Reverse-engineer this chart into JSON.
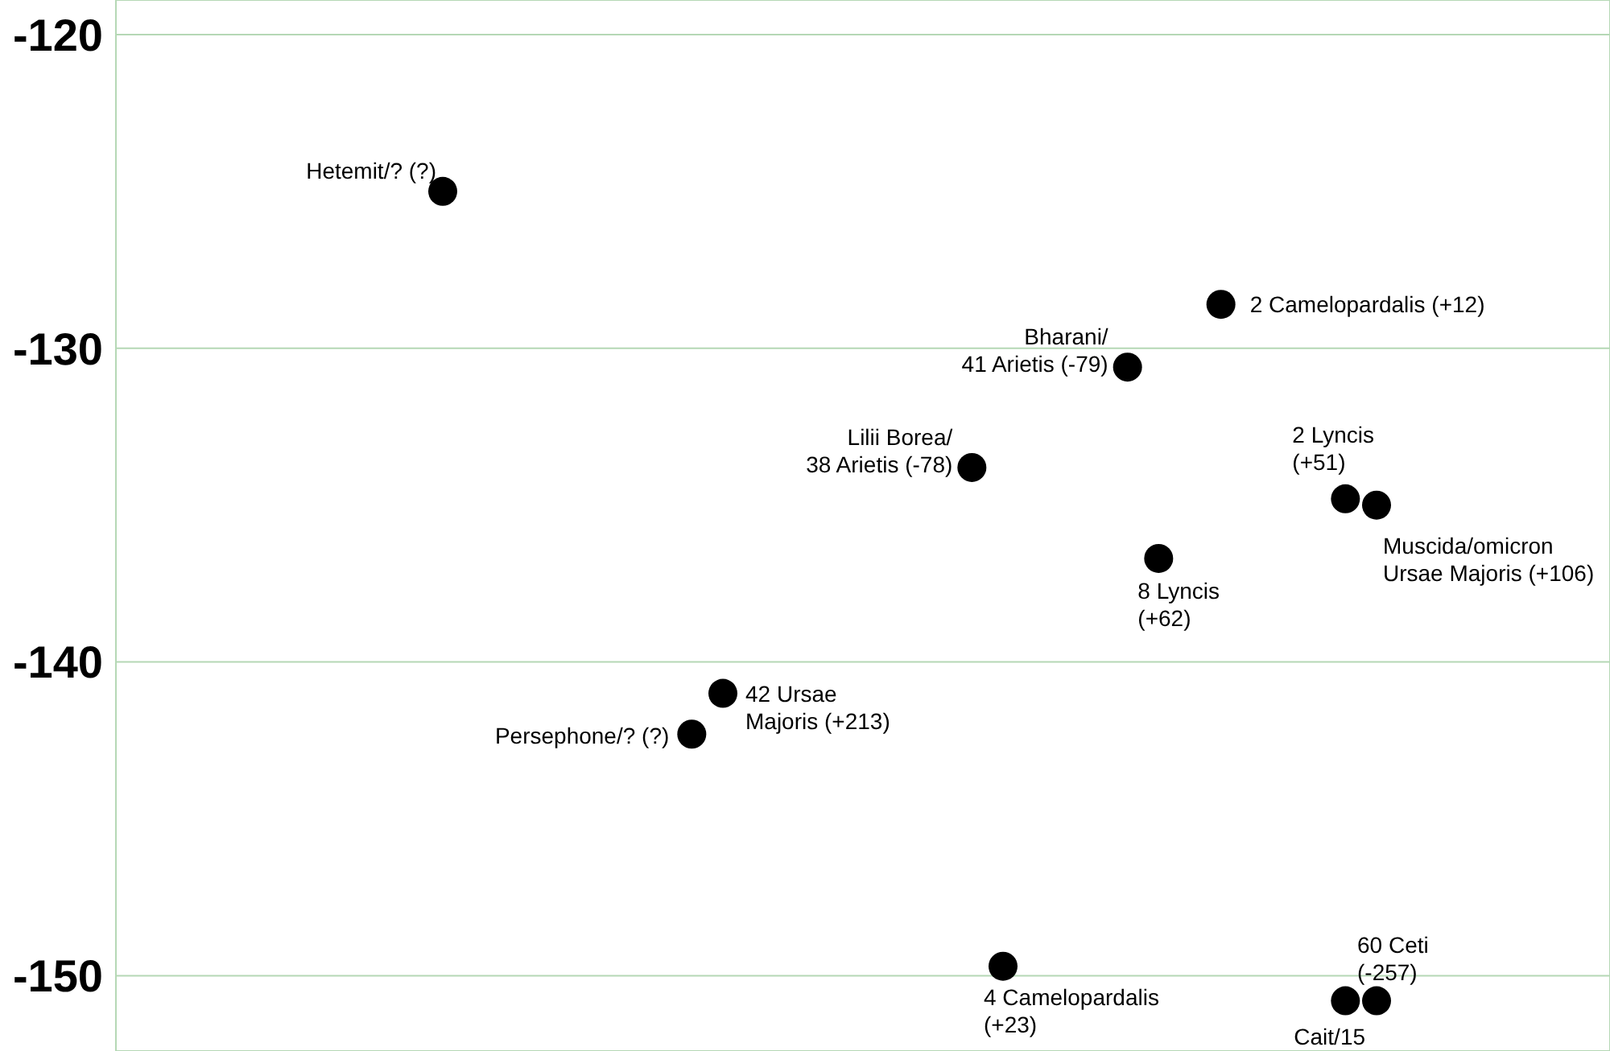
{
  "chart_data": {
    "type": "scatter",
    "categories": [
      null,
      null,
      null,
      null,
      null,
      null,
      null,
      null,
      null,
      null,
      null,
      null,
      null,
      null,
      null,
      null,
      null,
      null,
      null,
      null,
      null,
      null,
      null,
      null,
      null,
      null,
      null,
      null,
      null,
      null,
      null,
      null,
      null,
      null,
      null,
      null,
      null,
      null,
      null,
      null,
      null,
      null,
      null,
      null,
      null,
      null,
      null,
      null
    ],
    "series": [
      {
        "name": "Hetemit/? (?)",
        "color": "#000000",
        "values": [
          null,
          null,
          null,
          null,
          null,
          null,
          null,
          null,
          null,
          null,
          -125,
          null,
          null,
          null,
          null,
          null,
          null,
          null,
          null,
          null,
          null,
          null,
          null,
          null,
          null,
          null,
          null,
          null,
          null,
          null,
          null,
          null,
          null,
          null,
          null,
          null,
          null,
          null,
          null,
          null,
          null,
          null,
          null,
          null,
          null,
          null,
          null,
          null
        ]
      },
      {
        "name": "2 Camelopardalis (+12)",
        "color": "#000000",
        "values": [
          null,
          null,
          null,
          null,
          null,
          null,
          null,
          null,
          null,
          null,
          null,
          null,
          null,
          null,
          null,
          null,
          null,
          null,
          null,
          null,
          null,
          null,
          null,
          null,
          null,
          null,
          null,
          null,
          null,
          null,
          null,
          null,
          null,
          null,
          null,
          -128.6,
          null,
          null,
          null,
          null,
          null,
          null,
          null,
          null,
          null,
          null,
          null,
          null
        ]
      },
      {
        "name": "Bharani/41 Arietis (-79)",
        "color": "#000000",
        "values": [
          null,
          null,
          null,
          null,
          null,
          null,
          null,
          null,
          null,
          null,
          null,
          null,
          null,
          null,
          null,
          null,
          null,
          null,
          null,
          null,
          null,
          null,
          null,
          null,
          null,
          null,
          null,
          null,
          null,
          null,
          null,
          null,
          -130.6,
          null,
          null,
          null,
          null,
          null,
          null,
          null,
          null,
          null,
          null,
          null,
          null,
          null,
          null,
          null
        ]
      },
      {
        "name": "Lilii Borea/38 Arietis (-78)",
        "color": "#000000",
        "values": [
          null,
          null,
          null,
          null,
          null,
          null,
          null,
          null,
          null,
          null,
          null,
          null,
          null,
          null,
          null,
          null,
          null,
          null,
          null,
          null,
          null,
          null,
          null,
          null,
          null,
          null,
          null,
          -133.8,
          null,
          null,
          null,
          null,
          null,
          null,
          null,
          null,
          null,
          null,
          null,
          null,
          null,
          null,
          null,
          null,
          null,
          null,
          null,
          null
        ]
      },
      {
        "name": "2 Lyncis (+51)",
        "color": "#000000",
        "values": [
          null,
          null,
          null,
          null,
          null,
          null,
          null,
          null,
          null,
          null,
          null,
          null,
          null,
          null,
          null,
          null,
          null,
          null,
          null,
          null,
          null,
          null,
          null,
          null,
          null,
          null,
          null,
          null,
          null,
          null,
          null,
          null,
          null,
          null,
          null,
          null,
          null,
          null,
          null,
          -134.8,
          null,
          null,
          null,
          null,
          null,
          null,
          null,
          null
        ]
      },
      {
        "name": "Muscida/omicron Ursae Majoris (+106)",
        "color": "#000000",
        "values": [
          null,
          null,
          null,
          null,
          null,
          null,
          null,
          null,
          null,
          null,
          null,
          null,
          null,
          null,
          null,
          null,
          null,
          null,
          null,
          null,
          null,
          null,
          null,
          null,
          null,
          null,
          null,
          null,
          null,
          null,
          null,
          null,
          null,
          null,
          null,
          null,
          null,
          null,
          null,
          null,
          -135,
          null,
          null,
          null,
          null,
          null,
          null,
          null
        ]
      },
      {
        "name": "8 Lyncis (+62)",
        "color": "#000000",
        "values": [
          null,
          null,
          null,
          null,
          null,
          null,
          null,
          null,
          null,
          null,
          null,
          null,
          null,
          null,
          null,
          null,
          null,
          null,
          null,
          null,
          null,
          null,
          null,
          null,
          null,
          null,
          null,
          null,
          null,
          null,
          null,
          null,
          null,
          -136.7,
          null,
          null,
          null,
          null,
          null,
          null,
          null,
          null,
          null,
          null,
          null,
          null,
          null,
          null
        ]
      },
      {
        "name": "42 Ursae Majoris (+213)",
        "color": "#000000",
        "values": [
          null,
          null,
          null,
          null,
          null,
          null,
          null,
          null,
          null,
          null,
          null,
          null,
          null,
          null,
          null,
          null,
          null,
          null,
          null,
          -141,
          null,
          null,
          null,
          null,
          null,
          null,
          null,
          null,
          null,
          null,
          null,
          null,
          null,
          null,
          null,
          null,
          null,
          null,
          null,
          null,
          null,
          null,
          null,
          null,
          null,
          null,
          null,
          null
        ]
      },
      {
        "name": "Persephone/? (?)",
        "color": "#000000",
        "values": [
          null,
          null,
          null,
          null,
          null,
          null,
          null,
          null,
          null,
          null,
          null,
          null,
          null,
          null,
          null,
          null,
          null,
          null,
          -142.3,
          null,
          null,
          null,
          null,
          null,
          null,
          null,
          null,
          null,
          null,
          null,
          null,
          null,
          null,
          null,
          null,
          null,
          null,
          null,
          null,
          null,
          null,
          null,
          null,
          null,
          null,
          null,
          null,
          null
        ]
      },
      {
        "name": "4 Camelopardalis (+23)",
        "color": "#000000",
        "values": [
          null,
          null,
          null,
          null,
          null,
          null,
          null,
          null,
          null,
          null,
          null,
          null,
          null,
          null,
          null,
          null,
          null,
          null,
          null,
          null,
          null,
          null,
          null,
          null,
          null,
          null,
          null,
          null,
          -149.7,
          null,
          null,
          null,
          null,
          null,
          null,
          null,
          null,
          null,
          null,
          null,
          null,
          null,
          null,
          null,
          null,
          null,
          null,
          null
        ]
      },
      {
        "name": "Cait/15",
        "color": "#000000",
        "values": [
          null,
          null,
          null,
          null,
          null,
          null,
          null,
          null,
          null,
          null,
          null,
          null,
          null,
          null,
          null,
          null,
          null,
          null,
          null,
          null,
          null,
          null,
          null,
          null,
          null,
          null,
          null,
          null,
          null,
          null,
          null,
          null,
          null,
          null,
          null,
          null,
          null,
          null,
          null,
          -150.8,
          null,
          null,
          null,
          null,
          null,
          null,
          null,
          null
        ]
      },
      {
        "name": "60 Ceti (-257)",
        "color": "#000000",
        "values": [
          null,
          null,
          null,
          null,
          null,
          null,
          null,
          null,
          null,
          null,
          null,
          null,
          null,
          null,
          null,
          null,
          null,
          null,
          null,
          null,
          null,
          null,
          null,
          null,
          null,
          null,
          null,
          null,
          null,
          null,
          null,
          null,
          null,
          null,
          null,
          null,
          null,
          null,
          null,
          null,
          -150.8,
          null,
          null,
          null,
          null,
          null,
          null,
          null
        ]
      }
    ],
    "ylim": [
      -152.4,
      -118.9
    ],
    "yticks": [
      -120,
      -130,
      -140,
      -150
    ],
    "grid": true,
    "marker": "circle",
    "tick_labels": "y"
  }
}
